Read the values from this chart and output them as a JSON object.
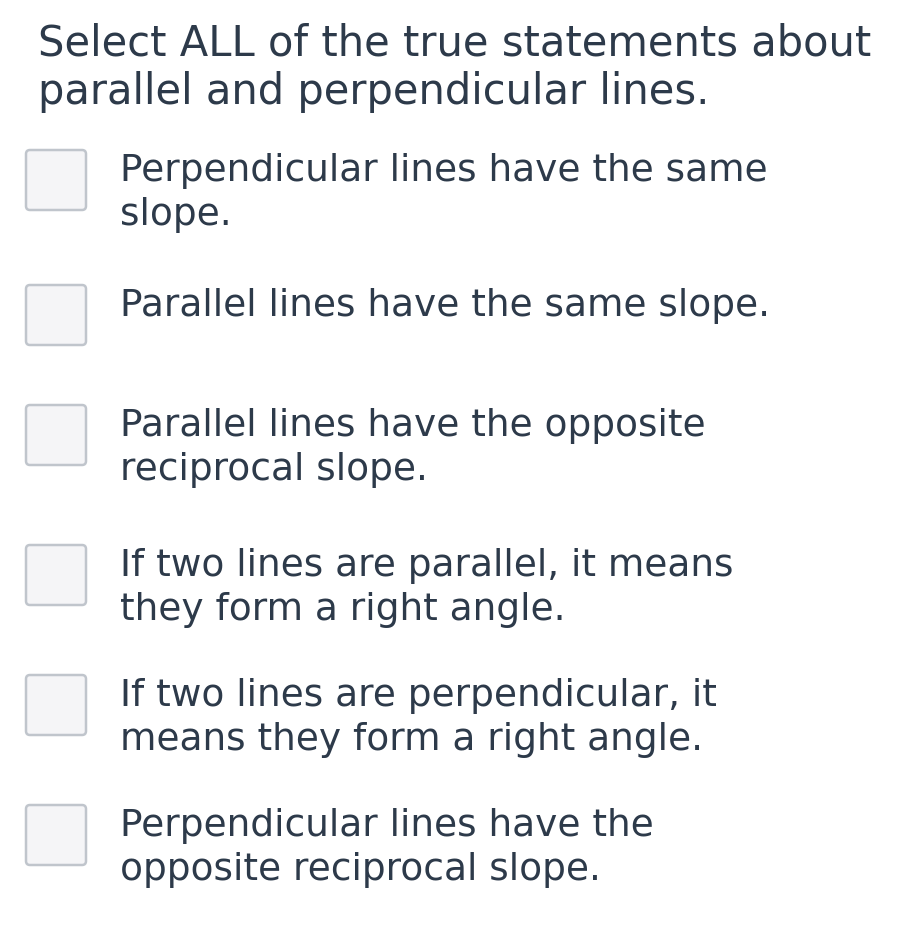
{
  "title": "Select ALL of the true statements about\nparallel and perpendicular lines.",
  "title_color": "#2d3a4a",
  "background_color": "#ffffff",
  "text_color": "#2d3a4a",
  "checkbox_edge_color": "#c0c5cc",
  "checkbox_face_color": "#f5f5f7",
  "options": [
    "Perpendicular lines have the same\nslope.",
    "Parallel lines have the same slope.",
    "Parallel lines have the opposite\nreciprocal slope.",
    "If two lines are parallel, it means\nthey form a right angle.",
    "If two lines are perpendicular, it\nmeans they form a right angle.",
    "Perpendicular lines have the\nopposite reciprocal slope."
  ],
  "title_fontsize": 30,
  "option_fontsize": 27,
  "fig_width": 9.12,
  "fig_height": 9.28,
  "dpi": 100
}
